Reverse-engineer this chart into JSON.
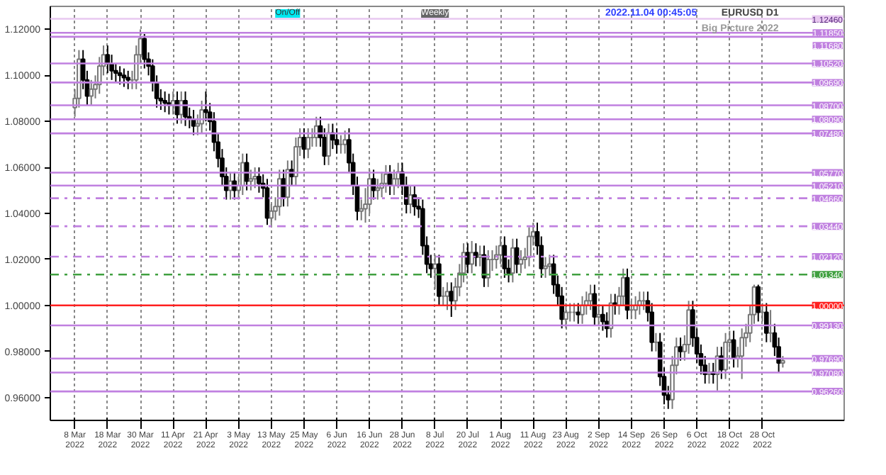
{
  "chart_data": {
    "type": "candlestick",
    "title": "EURUSD D1",
    "subtitle": "Big Picture 2022",
    "annotations": [
      "2022.11.04 00:45:05",
      "On/Off",
      "Weekly"
    ],
    "categories": [
      "8 Mar 2022",
      null,
      null,
      null,
      null,
      null,
      null,
      null,
      "18 Mar 2022",
      null,
      null,
      null,
      null,
      null,
      null,
      null,
      "30 Mar 2022",
      null,
      null,
      null,
      null,
      null,
      null,
      null,
      "11 Apr 2022",
      null,
      null,
      null,
      null,
      null,
      null,
      null,
      "21 Apr 2022",
      null,
      null,
      null,
      null,
      null,
      null,
      null,
      "3 May 2022",
      null,
      null,
      null,
      null,
      null,
      null,
      null,
      "13 May 2022",
      null,
      null,
      null,
      null,
      null,
      null,
      null,
      "25 May 2022",
      null,
      null,
      null,
      null,
      null,
      null,
      null,
      "6 Jun 2022",
      null,
      null,
      null,
      null,
      null,
      null,
      null,
      "16 Jun 2022",
      null,
      null,
      null,
      null,
      null,
      null,
      null,
      "28 Jun 2022",
      null,
      null,
      null,
      null,
      null,
      null,
      null,
      "8 Jul 2022",
      null,
      null,
      null,
      null,
      null,
      null,
      null,
      "20 Jul 2022",
      null,
      null,
      null,
      null,
      null,
      null,
      null,
      "1 Aug 2022",
      null,
      null,
      null,
      null,
      null,
      null,
      null,
      "11 Aug 2022",
      null,
      null,
      null,
      null,
      null,
      null,
      null,
      "23 Aug 2022",
      null,
      null,
      null,
      null,
      null,
      null,
      null,
      "2 Sep 2022",
      null,
      null,
      null,
      null,
      null,
      null,
      null,
      "14 Sep 2022",
      null,
      null,
      null,
      null,
      null,
      null,
      null,
      "26 Sep 2022",
      null,
      null,
      null,
      null,
      null,
      null,
      null,
      "6 Oct 2022",
      null,
      null,
      null,
      null,
      null,
      null,
      null,
      "18 Oct 2022",
      null,
      null,
      null,
      null,
      null,
      null,
      null,
      "28 Oct 2022",
      null,
      null,
      null,
      null,
      null
    ],
    "ohlc": [
      [
        1.086,
        1.094,
        1.082,
        1.09
      ],
      [
        1.09,
        1.111,
        1.086,
        1.107
      ],
      [
        1.107,
        1.111,
        1.094,
        1.098
      ],
      [
        1.098,
        1.102,
        1.087,
        1.091
      ],
      [
        1.091,
        1.098,
        1.087,
        1.094
      ],
      [
        1.094,
        1.1,
        1.09,
        1.096
      ],
      [
        1.096,
        1.108,
        1.092,
        1.104
      ],
      [
        1.104,
        1.113,
        1.1,
        1.109
      ],
      [
        1.109,
        1.113,
        1.101,
        1.105
      ],
      [
        1.105,
        1.109,
        1.098,
        1.102
      ],
      [
        1.102,
        1.105,
        1.097,
        1.101
      ],
      [
        1.101,
        1.104,
        1.096,
        1.1
      ],
      [
        1.1,
        1.103,
        1.095,
        1.099
      ],
      [
        1.099,
        1.102,
        1.094,
        1.098
      ],
      [
        1.098,
        1.102,
        1.094,
        1.098
      ],
      [
        1.098,
        1.113,
        1.094,
        1.109
      ],
      [
        1.109,
        1.12,
        1.105,
        1.116
      ],
      [
        1.116,
        1.118,
        1.103,
        1.107
      ],
      [
        1.107,
        1.11,
        1.1,
        1.104
      ],
      [
        1.104,
        1.107,
        1.093,
        1.097
      ],
      [
        1.097,
        1.1,
        1.086,
        1.09
      ],
      [
        1.09,
        1.094,
        1.085,
        1.089
      ],
      [
        1.089,
        1.093,
        1.084,
        1.088
      ],
      [
        1.088,
        1.092,
        1.083,
        1.087
      ],
      [
        1.087,
        1.093,
        1.083,
        1.089
      ],
      [
        1.089,
        1.093,
        1.079,
        1.083
      ],
      [
        1.083,
        1.093,
        1.079,
        1.089
      ],
      [
        1.089,
        1.093,
        1.078,
        1.082
      ],
      [
        1.082,
        1.086,
        1.077,
        1.081
      ],
      [
        1.081,
        1.085,
        1.074,
        1.078
      ],
      [
        1.078,
        1.083,
        1.074,
        1.079
      ],
      [
        1.079,
        1.089,
        1.075,
        1.085
      ],
      [
        1.085,
        1.093,
        1.08,
        1.084
      ],
      [
        1.084,
        1.088,
        1.076,
        1.08
      ],
      [
        1.08,
        1.084,
        1.067,
        1.071
      ],
      [
        1.071,
        1.075,
        1.06,
        1.064
      ],
      [
        1.064,
        1.068,
        1.052,
        1.056
      ],
      [
        1.056,
        1.06,
        1.046,
        1.05
      ],
      [
        1.05,
        1.058,
        1.046,
        1.054
      ],
      [
        1.054,
        1.058,
        1.046,
        1.05
      ],
      [
        1.05,
        1.056,
        1.046,
        1.052
      ],
      [
        1.052,
        1.066,
        1.048,
        1.062
      ],
      [
        1.062,
        1.066,
        1.05,
        1.054
      ],
      [
        1.054,
        1.059,
        1.05,
        1.055
      ],
      [
        1.055,
        1.06,
        1.051,
        1.056
      ],
      [
        1.056,
        1.06,
        1.049,
        1.053
      ],
      [
        1.053,
        1.057,
        1.047,
        1.051
      ],
      [
        1.051,
        1.055,
        1.035,
        1.038
      ],
      [
        1.038,
        1.044,
        1.035,
        1.041
      ],
      [
        1.041,
        1.047,
        1.037,
        1.043
      ],
      [
        1.043,
        1.059,
        1.039,
        1.055
      ],
      [
        1.055,
        1.059,
        1.043,
        1.047
      ],
      [
        1.047,
        1.063,
        1.043,
        1.059
      ],
      [
        1.059,
        1.063,
        1.052,
        1.056
      ],
      [
        1.056,
        1.073,
        1.052,
        1.069
      ],
      [
        1.069,
        1.077,
        1.065,
        1.073
      ],
      [
        1.073,
        1.077,
        1.064,
        1.068
      ],
      [
        1.068,
        1.077,
        1.064,
        1.073
      ],
      [
        1.073,
        1.077,
        1.069,
        1.073
      ],
      [
        1.073,
        1.082,
        1.069,
        1.078
      ],
      [
        1.078,
        1.082,
        1.069,
        1.073
      ],
      [
        1.073,
        1.077,
        1.061,
        1.065
      ],
      [
        1.065,
        1.079,
        1.061,
        1.075
      ],
      [
        1.075,
        1.079,
        1.068,
        1.072
      ],
      [
        1.072,
        1.077,
        1.066,
        1.07
      ],
      [
        1.07,
        1.074,
        1.066,
        1.07
      ],
      [
        1.07,
        1.076,
        1.066,
        1.072
      ],
      [
        1.072,
        1.077,
        1.058,
        1.062
      ],
      [
        1.062,
        1.066,
        1.048,
        1.052
      ],
      [
        1.052,
        1.056,
        1.037,
        1.041
      ],
      [
        1.041,
        1.046,
        1.037,
        1.042
      ],
      [
        1.042,
        1.051,
        1.036,
        1.044
      ],
      [
        1.044,
        1.059,
        1.04,
        1.055
      ],
      [
        1.055,
        1.059,
        1.046,
        1.05
      ],
      [
        1.05,
        1.055,
        1.046,
        1.051
      ],
      [
        1.051,
        1.058,
        1.047,
        1.053
      ],
      [
        1.053,
        1.061,
        1.049,
        1.057
      ],
      [
        1.057,
        1.061,
        1.048,
        1.052
      ],
      [
        1.052,
        1.059,
        1.048,
        1.055
      ],
      [
        1.055,
        1.062,
        1.051,
        1.058
      ],
      [
        1.058,
        1.062,
        1.048,
        1.052
      ],
      [
        1.052,
        1.056,
        1.04,
        1.044
      ],
      [
        1.044,
        1.052,
        1.04,
        1.048
      ],
      [
        1.048,
        1.052,
        1.039,
        1.043
      ],
      [
        1.043,
        1.047,
        1.038,
        1.042
      ],
      [
        1.042,
        1.046,
        1.022,
        1.026
      ],
      [
        1.026,
        1.03,
        1.014,
        1.018
      ],
      [
        1.018,
        1.022,
        1.012,
        1.016
      ],
      [
        1.016,
        1.022,
        1.007,
        1.018
      ],
      [
        1.018,
        1.022,
        1.0,
        1.004
      ],
      [
        1.004,
        1.008,
        1.0,
        1.004
      ],
      [
        1.004,
        1.01,
        0.998,
        1.006
      ],
      [
        1.006,
        1.01,
        0.995,
        1.002
      ],
      [
        1.002,
        1.012,
        0.998,
        1.008
      ],
      [
        1.008,
        1.018,
        1.004,
        1.014
      ],
      [
        1.014,
        1.027,
        1.01,
        1.023
      ],
      [
        1.023,
        1.027,
        1.014,
        1.018
      ],
      [
        1.018,
        1.028,
        1.014,
        1.023
      ],
      [
        1.023,
        1.027,
        1.017,
        1.021
      ],
      [
        1.021,
        1.026,
        1.017,
        1.022
      ],
      [
        1.022,
        1.026,
        1.008,
        1.012
      ],
      [
        1.012,
        1.024,
        1.008,
        1.02
      ],
      [
        1.02,
        1.024,
        1.015,
        1.02
      ],
      [
        1.02,
        1.026,
        1.016,
        1.022
      ],
      [
        1.022,
        1.03,
        1.018,
        1.026
      ],
      [
        1.026,
        1.03,
        1.012,
        1.016
      ],
      [
        1.016,
        1.02,
        1.01,
        1.014
      ],
      [
        1.014,
        1.029,
        1.01,
        1.025
      ],
      [
        1.025,
        1.029,
        1.014,
        1.018
      ],
      [
        1.018,
        1.024,
        1.014,
        1.02
      ],
      [
        1.02,
        1.025,
        1.016,
        1.021
      ],
      [
        1.021,
        1.034,
        1.017,
        1.03
      ],
      [
        1.03,
        1.036,
        1.026,
        1.032
      ],
      [
        1.032,
        1.036,
        1.022,
        1.026
      ],
      [
        1.026,
        1.03,
        1.012,
        1.016
      ],
      [
        1.016,
        1.021,
        1.012,
        1.017
      ],
      [
        1.017,
        1.022,
        1.013,
        1.018
      ],
      [
        1.018,
        1.022,
        1.005,
        1.009
      ],
      [
        1.009,
        1.013,
        1.0,
        1.004
      ],
      [
        1.004,
        1.008,
        0.99,
        0.994
      ],
      [
        0.994,
        1.001,
        0.99,
        0.997
      ],
      [
        0.997,
        1.001,
        0.993,
        0.997
      ],
      [
        0.997,
        1.001,
        0.993,
        0.997
      ],
      [
        0.997,
        1.001,
        0.992,
        0.996
      ],
      [
        0.996,
        1.004,
        0.992,
        1.0
      ],
      [
        1.0,
        1.006,
        0.996,
        1.002
      ],
      [
        1.002,
        1.009,
        0.998,
        1.005
      ],
      [
        1.005,
        1.009,
        0.991,
        0.995
      ],
      [
        0.995,
        1.0,
        0.991,
        0.996
      ],
      [
        0.996,
        1.0,
        0.989,
        0.993
      ],
      [
        0.993,
        0.997,
        0.986,
        0.99
      ],
      [
        0.99,
        1.005,
        0.986,
        1.001
      ],
      [
        1.001,
        1.005,
        0.996,
        1.0
      ],
      [
        1.0,
        1.008,
        0.996,
        1.004
      ],
      [
        1.004,
        1.016,
        1.0,
        1.012
      ],
      [
        1.012,
        1.016,
        0.994,
        0.998
      ],
      [
        0.998,
        1.002,
        0.994,
        0.998
      ],
      [
        0.998,
        1.004,
        0.994,
        1.0
      ],
      [
        1.0,
        1.006,
        0.996,
        1.002
      ],
      [
        1.002,
        1.006,
        0.998,
        1.002
      ],
      [
        1.002,
        1.006,
        0.993,
        0.997
      ],
      [
        0.997,
        1.001,
        0.98,
        0.984
      ],
      [
        0.984,
        0.988,
        0.98,
        0.984
      ],
      [
        0.984,
        0.988,
        0.965,
        0.969
      ],
      [
        0.969,
        0.973,
        0.957,
        0.961
      ],
      [
        0.961,
        0.965,
        0.955,
        0.959
      ],
      [
        0.959,
        0.978,
        0.955,
        0.974
      ],
      [
        0.974,
        0.986,
        0.97,
        0.982
      ],
      [
        0.982,
        0.986,
        0.976,
        0.98
      ],
      [
        0.98,
        0.987,
        0.976,
        0.983
      ],
      [
        0.983,
        1.002,
        0.979,
        0.998
      ],
      [
        0.998,
        1.002,
        0.982,
        0.986
      ],
      [
        0.986,
        0.99,
        0.975,
        0.979
      ],
      [
        0.979,
        0.983,
        0.97,
        0.974
      ],
      [
        0.974,
        0.978,
        0.966,
        0.97
      ],
      [
        0.97,
        0.975,
        0.966,
        0.971
      ],
      [
        0.971,
        0.975,
        0.966,
        0.97
      ],
      [
        0.97,
        0.982,
        0.963,
        0.978
      ],
      [
        0.978,
        0.982,
        0.968,
        0.972
      ],
      [
        0.972,
        0.988,
        0.968,
        0.984
      ],
      [
        0.984,
        0.989,
        0.98,
        0.985
      ],
      [
        0.985,
        0.989,
        0.973,
        0.977
      ],
      [
        0.977,
        0.982,
        0.973,
        0.978
      ],
      [
        0.978,
        0.99,
        0.968,
        0.986
      ],
      [
        0.986,
        0.992,
        0.982,
        0.988
      ],
      [
        0.988,
        1.0,
        0.984,
        0.996
      ],
      [
        0.996,
        1.009,
        0.992,
        1.008
      ],
      [
        1.008,
        1.009,
        0.993,
        0.997
      ],
      [
        0.997,
        1.001,
        0.993,
        0.997
      ],
      [
        0.997,
        1.001,
        0.984,
        0.988
      ],
      [
        0.988,
        0.998,
        0.984,
        0.988
      ],
      [
        0.988,
        0.992,
        0.978,
        0.982
      ],
      [
        0.982,
        0.986,
        0.971,
        0.975
      ],
      [
        0.975,
        0.978,
        0.973,
        0.976
      ]
    ],
    "ylim": [
      0.95,
      1.13
    ],
    "yticks": [
      {
        "value": 0.96,
        "label": "0.96000"
      },
      {
        "value": 0.98,
        "label": "0.98000"
      },
      {
        "value": 1.0,
        "label": "1.00000"
      },
      {
        "value": 1.02,
        "label": "1.02000"
      },
      {
        "value": 1.04,
        "label": "1.04000"
      },
      {
        "value": 1.06,
        "label": "1.06000"
      },
      {
        "value": 1.08,
        "label": "1.08000"
      },
      {
        "value": 1.1,
        "label": "1.10000"
      },
      {
        "value": 1.12,
        "label": "1.12000"
      }
    ],
    "ref_lines": [
      {
        "axis": "y",
        "value": 1.1246,
        "label": "1.12460",
        "color": "#e8c8f0"
      },
      {
        "axis": "y",
        "value": 1.1185,
        "label": "1.11850",
        "color": "#c080e0"
      },
      {
        "axis": "y",
        "value": 1.1168,
        "label": "1.11680",
        "color": "#c080e0"
      },
      {
        "axis": "y",
        "value": 1.1052,
        "label": "1.10520",
        "color": "#c080e0"
      },
      {
        "axis": "y",
        "value": 1.0969,
        "label": "1.09690",
        "color": "#c080e0"
      },
      {
        "axis": "y",
        "value": 1.087,
        "label": "1.08700",
        "color": "#c080e0"
      },
      {
        "axis": "y",
        "value": 1.0809,
        "label": "1.08090",
        "color": "#c080e0"
      },
      {
        "axis": "y",
        "value": 1.0748,
        "label": "1.07480",
        "color": "#c080e0"
      },
      {
        "axis": "y",
        "value": 1.0577,
        "label": "1.05770",
        "color": "#c080e0"
      },
      {
        "axis": "y",
        "value": 1.0521,
        "label": "1.05210",
        "color": "#c080e0"
      },
      {
        "axis": "y",
        "value": 1.0466,
        "label": "1.04660",
        "color": "#c080e0",
        "line_style": "dashed"
      },
      {
        "axis": "y",
        "value": 1.0344,
        "label": "1.03440",
        "color": "#c080e0",
        "line_style": "dashed"
      },
      {
        "axis": "y",
        "value": 1.0212,
        "label": "1.02120",
        "color": "#c080e0",
        "line_style": "dashed"
      },
      {
        "axis": "y",
        "value": 1.0134,
        "label": "1.01340",
        "color": "#40a040",
        "line_style": "dashed"
      },
      {
        "axis": "y",
        "value": 1.0,
        "label": "1.00000",
        "color": "#ff2020"
      },
      {
        "axis": "y",
        "value": 0.9913,
        "label": "0.99130",
        "color": "#c080e0"
      },
      {
        "axis": "y",
        "value": 0.9769,
        "label": "0.97690",
        "color": "#c080e0"
      },
      {
        "axis": "y",
        "value": 0.9708,
        "label": "0.97080",
        "color": "#c080e0"
      },
      {
        "axis": "y",
        "value": 0.9626,
        "label": "0.96260",
        "color": "#c080e0"
      }
    ],
    "grid": "x"
  }
}
